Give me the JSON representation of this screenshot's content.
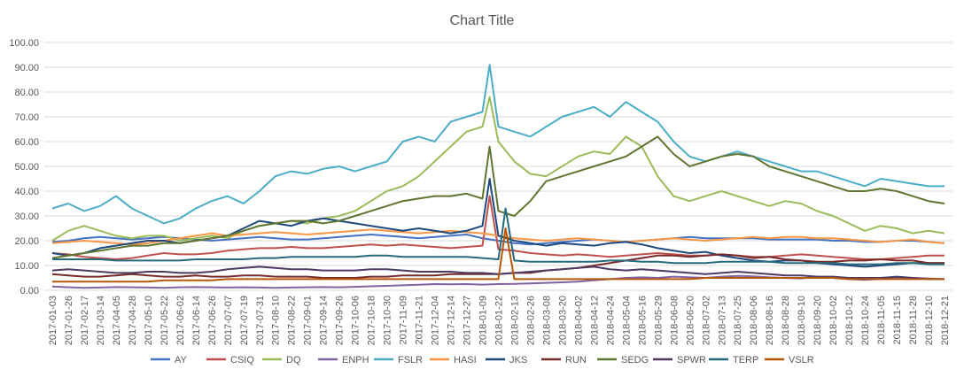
{
  "chart_data": {
    "type": "line",
    "title": "Chart Title",
    "xlabel": "",
    "ylabel": "",
    "ylim": [
      0,
      100
    ],
    "y_ticks": [
      "0.00",
      "10.00",
      "20.00",
      "30.00",
      "40.00",
      "50.00",
      "60.00",
      "70.00",
      "80.00",
      "90.00",
      "100.00"
    ],
    "x_ticks": [
      "2017-01-03",
      "2017-01-26",
      "2017-02-17",
      "2017-03-14",
      "2017-04-05",
      "2017-04-28",
      "2017-05-10",
      "2017-05-22",
      "2017-06-02",
      "2017-06-14",
      "2017-06-26",
      "2017-07-07",
      "2017-07-19",
      "2017-07-31",
      "2017-08-10",
      "2017-08-22",
      "2017-09-01",
      "2017-09-14",
      "2017-09-26",
      "2017-10-06",
      "2017-10-18",
      "2017-10-30",
      "2017-11-09",
      "2017-11-21",
      "2017-12-04",
      "2017-12-14",
      "2017-12-27",
      "2018-01-09",
      "2018-01-22",
      "2018-02-13",
      "2018-02-26",
      "2018-03-08",
      "2018-03-20",
      "2018-04-02",
      "2018-04-12",
      "2018-04-24",
      "2018-05-04",
      "2018-05-16",
      "2018-05-29",
      "2018-06-08",
      "2018-06-20",
      "2018-07-02",
      "2018-07-13",
      "2018-07-25",
      "2018-08-06",
      "2018-08-16",
      "2018-08-28",
      "2018-09-10",
      "2018-09-20",
      "2018-10-02",
      "2018-10-12",
      "2018-10-24",
      "2018-11-05",
      "2018-11-15",
      "2018-11-28",
      "2018-12-10",
      "2018-12-21"
    ],
    "grid": true,
    "legend_position": "bottom",
    "series": [
      {
        "name": "AY",
        "color": "#4472C4",
        "values": [
          19.5,
          20,
          21,
          21.5,
          21,
          20.5,
          21,
          21.5,
          21,
          20.5,
          20,
          20.5,
          21,
          21.5,
          21,
          20.5,
          20.5,
          21,
          21.5,
          22,
          22.5,
          22,
          21.5,
          21,
          21.5,
          22,
          22.5,
          21,
          20,
          19,
          18.5,
          19,
          19.5,
          20,
          20.5,
          20,
          19.5,
          20,
          20.5,
          21,
          21.5,
          21,
          21,
          21,
          21,
          20.5,
          20.5,
          20.5,
          20.5,
          20,
          20,
          19.5,
          19.5,
          20,
          20,
          19.5,
          19
        ]
      },
      {
        "name": "CSIQ",
        "color": "#C0504D",
        "values": [
          15,
          14.5,
          13.5,
          13,
          12.5,
          13,
          14,
          15,
          14.5,
          14.5,
          15,
          16,
          16.5,
          17,
          17,
          17.5,
          17,
          17,
          17.5,
          18,
          18.5,
          18,
          18.5,
          18,
          17.5,
          17,
          17.5,
          18,
          16.5,
          16,
          15,
          14.5,
          14,
          14.5,
          14,
          13.5,
          14,
          14.5,
          15,
          14.5,
          14,
          14,
          14.5,
          14,
          13.5,
          13.5,
          14,
          14.5,
          14,
          13.5,
          13,
          12.5,
          12.5,
          13,
          13.5,
          14,
          14
        ]
      },
      {
        "name": "DQ",
        "color": "#9BBB59",
        "values": [
          20,
          24,
          26,
          24,
          22,
          21,
          22,
          22,
          20,
          21,
          22,
          21,
          24,
          26,
          27,
          28,
          27,
          29,
          30,
          32,
          36,
          40,
          42,
          46,
          52,
          58,
          64,
          66,
          60,
          52,
          47,
          46,
          50,
          54,
          56,
          55,
          62,
          58,
          46,
          38,
          36,
          38,
          40,
          38,
          36,
          34,
          36,
          35,
          32,
          30,
          27,
          24,
          26,
          25,
          23,
          24,
          23
        ]
      },
      {
        "name": "ENPH",
        "color": "#8064A2",
        "values": [
          1.5,
          1.2,
          1,
          1.1,
          1.3,
          1.2,
          1.1,
          1,
          1.2,
          1.3,
          1.2,
          1.1,
          1.2,
          1.1,
          1,
          1.1,
          1.2,
          1.3,
          1.2,
          1.4,
          1.6,
          1.8,
          2,
          2.2,
          2.5,
          2.4,
          2.5,
          2.3,
          2.5,
          2.6,
          2.8,
          3,
          3.2,
          3.5,
          4,
          4.5,
          5,
          5.2,
          5,
          5.5,
          5.2,
          5,
          5.5,
          5.8,
          5.6,
          5.2,
          5,
          4.8,
          5.5,
          5,
          4.5,
          4.2,
          4.6,
          5,
          5,
          4.8,
          4.5
        ]
      },
      {
        "name": "FSLR",
        "color": "#4BACC6",
        "values": [
          33,
          35,
          32,
          34,
          38,
          33,
          30,
          27,
          29,
          33,
          36,
          38,
          35,
          40,
          46,
          48,
          47,
          49,
          50,
          48,
          50,
          52,
          60,
          62,
          60,
          68,
          70,
          72,
          66,
          64,
          62,
          66,
          70,
          72,
          74,
          70,
          76,
          72,
          68,
          60,
          54,
          52,
          54,
          56,
          54,
          52,
          50,
          48,
          48,
          46,
          44,
          42,
          45,
          44,
          43,
          42,
          42
        ]
      },
      {
        "name": "HASI",
        "color": "#F79646",
        "values": [
          19,
          19.5,
          20,
          19.5,
          19,
          18.5,
          19,
          20,
          21,
          22,
          23,
          22,
          22.5,
          23,
          23.5,
          23,
          22.5,
          23,
          23.5,
          24,
          24.5,
          24,
          23.5,
          23,
          23.5,
          24,
          23.5,
          23,
          22,
          21,
          20.5,
          20,
          20.5,
          21,
          20.5,
          20,
          19.5,
          20,
          20.5,
          21,
          20.5,
          20,
          20.5,
          21,
          21.5,
          21,
          21.5,
          21.5,
          21,
          21,
          20.5,
          20,
          19.5,
          20,
          20.5,
          19.5,
          19
        ]
      },
      {
        "name": "JKS",
        "color": "#1F497D",
        "values": [
          15,
          14,
          15,
          17,
          18,
          19,
          20,
          20,
          19,
          20,
          21,
          22,
          25,
          28,
          27,
          26,
          28,
          29,
          28,
          27,
          26,
          25,
          24,
          25,
          24,
          23,
          24,
          26,
          22,
          20,
          19,
          18,
          19,
          18.5,
          18,
          19,
          19.5,
          18.5,
          17,
          16,
          15,
          15.5,
          14,
          13,
          12,
          11.5,
          12,
          12,
          11,
          10.5,
          10,
          9.5,
          10,
          10.5,
          11,
          11,
          11
        ]
      },
      {
        "name": "RUN",
        "color": "#772C2A",
        "values": [
          6.5,
          6,
          5.5,
          5.5,
          6,
          6.5,
          6,
          5.5,
          5.5,
          6,
          5.5,
          5.5,
          6,
          6,
          5.5,
          5.5,
          5.5,
          5,
          5,
          5,
          5.5,
          5.5,
          6,
          6,
          6,
          6.5,
          6.5,
          6.5,
          6.5,
          7,
          7,
          8,
          8.5,
          9,
          10,
          11,
          12,
          13,
          14,
          14,
          13.5,
          14,
          14.5,
          14,
          13,
          13.5,
          12.5,
          12,
          11.5,
          11.5,
          12,
          12,
          12.5,
          12,
          12,
          11,
          11
        ]
      },
      {
        "name": "SEDG",
        "color": "#5F7530",
        "values": [
          13,
          14,
          15,
          16,
          17,
          18,
          18,
          19,
          19,
          20,
          21,
          22,
          24,
          26,
          27,
          28,
          28,
          27,
          28,
          30,
          32,
          34,
          36,
          37,
          38,
          38,
          39,
          37,
          32,
          30,
          36,
          44,
          46,
          48,
          50,
          52,
          54,
          58,
          62,
          55,
          50,
          52,
          54,
          55,
          54,
          50,
          48,
          46,
          44,
          42,
          40,
          40,
          41,
          40,
          38,
          36,
          35
        ]
      },
      {
        "name": "SPWR",
        "color": "#4D3B62",
        "values": [
          8,
          8.5,
          8,
          7.5,
          7,
          7,
          7.5,
          7.5,
          7,
          7,
          7.5,
          8.5,
          9,
          9.5,
          9,
          8.5,
          8.5,
          8,
          8,
          8,
          8.5,
          8.5,
          8,
          7.5,
          7.5,
          7.5,
          7,
          7,
          6.5,
          7,
          7.5,
          8,
          8.5,
          9,
          9.5,
          8.5,
          8,
          8.5,
          8,
          7.5,
          7,
          6.5,
          7,
          7.5,
          7,
          6.5,
          6,
          6,
          5.5,
          5.5,
          5,
          5,
          5,
          5.5,
          5,
          4.5,
          4.5
        ]
      },
      {
        "name": "TERP",
        "color": "#276A7C",
        "values": [
          12.5,
          12.5,
          12.5,
          12.5,
          12,
          12,
          12,
          12,
          12,
          12.5,
          12.5,
          12.5,
          12.5,
          13,
          13,
          13.5,
          13.5,
          13.5,
          13.5,
          13.5,
          14,
          14,
          13.5,
          13.5,
          13.5,
          13.5,
          13.5,
          13,
          12.5,
          12,
          11.5,
          11.5,
          11.5,
          11.5,
          11.5,
          12,
          12,
          11.5,
          11.5,
          11,
          11,
          11,
          11.5,
          11.5,
          11.5,
          11.5,
          11,
          11,
          11,
          11,
          10.5,
          10.5,
          10.5,
          11,
          11,
          10.5,
          10.5
        ]
      },
      {
        "name": "VSLR",
        "color": "#B65708",
        "values": [
          3.5,
          3.5,
          3.5,
          3.5,
          3.5,
          3.5,
          3.5,
          4,
          4,
          4,
          4,
          4.5,
          4.5,
          4.5,
          4.5,
          4.5,
          4.5,
          4.5,
          4.5,
          4.5,
          4.5,
          4.5,
          4.5,
          4.5,
          4.5,
          4.5,
          4.5,
          4.5,
          4.5,
          4.5,
          4.5,
          4.5,
          4.5,
          4.5,
          4.5,
          4.5,
          4.5,
          4.5,
          4.5,
          4.5,
          4.5,
          5,
          5,
          5,
          5,
          5,
          5,
          5,
          5,
          5,
          4.5,
          4.5,
          4.5,
          4.5,
          4.5,
          4.5,
          4.5
        ]
      }
    ],
    "spikes": [
      {
        "series": "DQ",
        "category": "2018-01-09",
        "value": 78
      },
      {
        "series": "FSLR",
        "category": "2018-01-09",
        "value": 91
      },
      {
        "series": "CSIQ",
        "category": "2018-01-09",
        "value": 38
      },
      {
        "series": "JKS",
        "category": "2018-01-09",
        "value": 45
      },
      {
        "series": "SEDG",
        "category": "2018-01-09",
        "value": 58
      },
      {
        "series": "TERP",
        "category": "2018-01-22",
        "value": 33
      },
      {
        "series": "VSLR",
        "category": "2018-01-22",
        "value": 25
      }
    ]
  }
}
